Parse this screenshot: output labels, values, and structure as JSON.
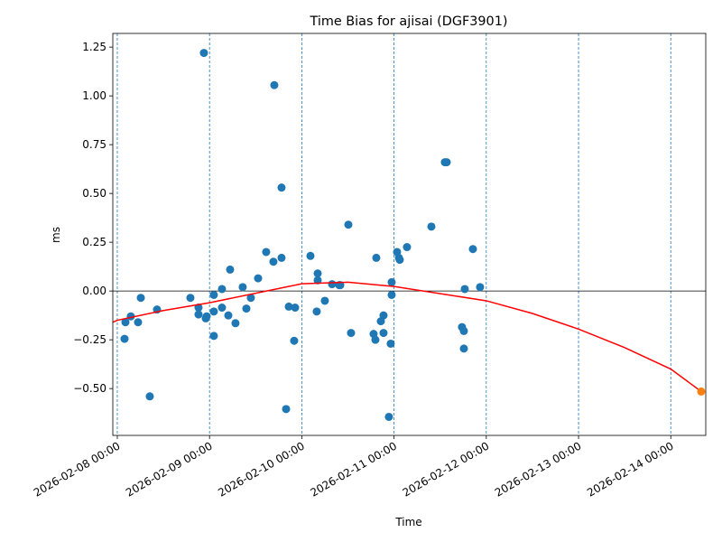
{
  "chart_data": {
    "type": "scatter",
    "title": "Time Bias for ajisai (DGF3901)",
    "x_label": "Time",
    "y_label": "ms",
    "xlim": [
      "2026-02-07 22:50",
      "2026-02-14 09:06"
    ],
    "xticks": [
      "2026-02-08 00:00",
      "2026-02-09 00:00",
      "2026-02-10 00:00",
      "2026-02-11 00:00",
      "2026-02-12 00:00",
      "2026-02-13 00:00",
      "2026-02-14 00:00"
    ],
    "ylim": [
      -0.74,
      1.32
    ],
    "yticks": [
      {
        "value": -0.5,
        "label": "−0.50"
      },
      {
        "value": -0.25,
        "label": "−0.25"
      },
      {
        "value": 0,
        "label": "0.00"
      },
      {
        "value": 0.25,
        "label": "0.25"
      },
      {
        "value": 0.5,
        "label": "0.50"
      },
      {
        "value": 0.75,
        "label": "0.75"
      },
      {
        "value": 1.0,
        "label": "1.00"
      },
      {
        "value": 1.25,
        "label": "1.25"
      }
    ],
    "grid": "x",
    "hline": 0,
    "series": [
      {
        "type": "scatter",
        "color": "#1f77b4",
        "x": [
          "2026-02-08 01:53",
          "2026-02-08 02:07",
          "2026-02-08 03:31",
          "2026-02-08 05:24",
          "2026-02-08 06:07",
          "2026-02-08 08:27",
          "2026-02-08 10:20",
          "2026-02-08 19:01",
          "2026-02-08 21:08",
          "2026-02-08 21:08",
          "2026-02-08 22:32",
          "2026-02-08 23:01",
          "2026-02-08 23:15",
          "2026-02-09 01:07",
          "2026-02-09 01:07",
          "2026-02-09 01:07",
          "2026-02-09 03:14",
          "2026-02-09 03:14",
          "2026-02-09 04:53",
          "2026-02-09 05:21",
          "2026-02-09 06:45",
          "2026-02-09 08:38",
          "2026-02-09 09:35",
          "2026-02-09 10:45",
          "2026-02-09 12:38",
          "2026-02-09 14:44",
          "2026-02-09 16:37",
          "2026-02-09 16:51",
          "2026-02-09 18:44",
          "2026-02-09 18:44",
          "2026-02-09 19:55",
          "2026-02-09 20:37",
          "2026-02-09 22:16",
          "2026-02-09 22:01",
          "2026-02-10 02:15",
          "2026-02-10 03:53",
          "2026-02-10 04:08",
          "2026-02-10 04:08",
          "2026-02-10 06:00",
          "2026-02-10 07:53",
          "2026-02-10 09:46",
          "2026-02-10 10:00",
          "2026-02-10 12:07",
          "2026-02-10 12:49",
          "2026-02-10 18:41",
          "2026-02-10 19:09",
          "2026-02-10 19:23",
          "2026-02-10 20:34",
          "2026-02-10 21:16",
          "2026-02-10 21:16",
          "2026-02-10 22:40",
          "2026-02-10 23:08",
          "2026-02-10 23:23",
          "2026-02-10 23:23",
          "2026-02-11 00:47",
          "2026-02-11 01:16",
          "2026-02-11 01:29",
          "2026-02-11 03:22",
          "2026-02-11 09:43",
          "2026-02-11 13:14",
          "2026-02-11 13:42",
          "2026-02-11 17:41",
          "2026-02-11 18:10",
          "2026-02-11 18:10",
          "2026-02-11 18:24",
          "2026-02-11 20:31",
          "2026-02-11 22:23"
        ],
        "values": [
          -0.245,
          -0.16,
          -0.13,
          -0.16,
          -0.035,
          -0.54,
          -0.095,
          -0.035,
          -0.085,
          -0.12,
          1.22,
          -0.14,
          -0.13,
          -0.02,
          -0.105,
          -0.23,
          0.01,
          -0.085,
          -0.125,
          0.11,
          -0.165,
          0.02,
          -0.09,
          -0.035,
          0.065,
          0.2,
          0.15,
          1.055,
          0.17,
          0.53,
          -0.605,
          -0.08,
          -0.085,
          -0.255,
          0.18,
          -0.105,
          0.09,
          0.055,
          -0.05,
          0.035,
          0.03,
          0.03,
          0.34,
          -0.215,
          -0.22,
          -0.25,
          0.17,
          -0.155,
          -0.215,
          -0.125,
          -0.645,
          -0.27,
          -0.02,
          0.045,
          0.2,
          0.17,
          0.16,
          0.225,
          0.33,
          0.66,
          0.66,
          -0.185,
          -0.205,
          -0.295,
          0.01,
          0.215,
          0.02
        ]
      },
      {
        "type": "line",
        "color": "#ff0000",
        "x": [
          "2026-02-07 22:50",
          "2026-02-08 00:00",
          "2026-02-08 12:00",
          "2026-02-09 00:00",
          "2026-02-10 00:00",
          "2026-02-10 12:00",
          "2026-02-11 00:00",
          "2026-02-12 00:00",
          "2026-02-12 12:00",
          "2026-02-13 00:00",
          "2026-02-13 12:00",
          "2026-02-14 00:00",
          "2026-02-14 07:55"
        ],
        "values": [
          -0.16,
          -0.15,
          -0.1,
          -0.06,
          0.037,
          0.045,
          0.023,
          -0.05,
          -0.115,
          -0.195,
          -0.29,
          -0.4,
          -0.515
        ]
      },
      {
        "type": "scatter",
        "color": "#ff7f0e",
        "x": [
          "2026-02-14 07:55"
        ],
        "values": [
          -0.515
        ]
      }
    ]
  }
}
